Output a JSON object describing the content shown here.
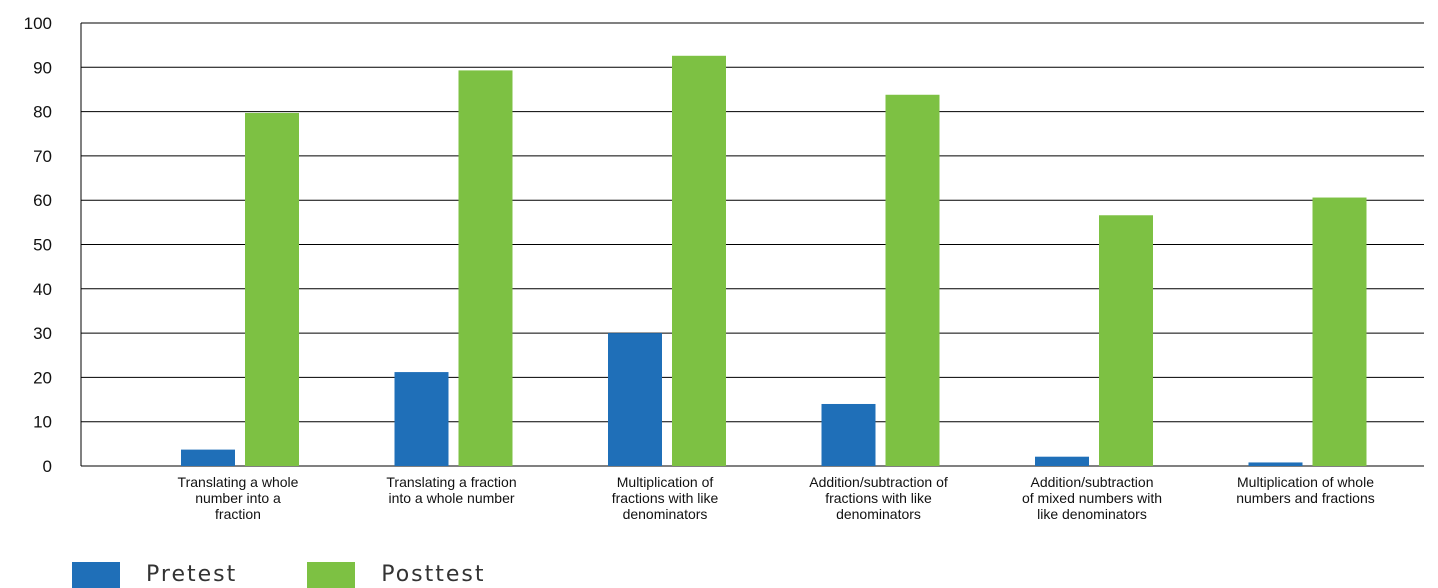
{
  "chart_data": {
    "type": "bar",
    "categories": [
      [
        "Translating a whole",
        "number into a",
        "fraction"
      ],
      [
        "Translating a fraction",
        "into a whole number"
      ],
      [
        "Multiplication of",
        "fractions with like",
        "denominators"
      ],
      [
        "Addition/subtraction of",
        "fractions with like",
        "denominators"
      ],
      [
        "Addition/subtraction",
        "of mixed numbers with",
        "like denominators"
      ],
      [
        "Multiplication of whole",
        "numbers and fractions"
      ]
    ],
    "series": [
      {
        "name": "Pretest",
        "color": "#1f6fb8",
        "values": [
          3.7,
          21.2,
          30,
          14,
          2.1,
          0.8
        ]
      },
      {
        "name": "Posttest",
        "color": "#7dc143",
        "values": [
          79.7,
          89.3,
          92.6,
          83.8,
          56.6,
          60.6
        ]
      }
    ],
    "ylim": [
      0,
      100
    ],
    "yticks": [
      "0",
      "10",
      "20",
      "30",
      "40",
      "50",
      "60",
      "70",
      "80",
      "90",
      "100"
    ],
    "grid": true,
    "legend_position": "bottom-left",
    "title": "",
    "xlabel": "",
    "ylabel": ""
  }
}
